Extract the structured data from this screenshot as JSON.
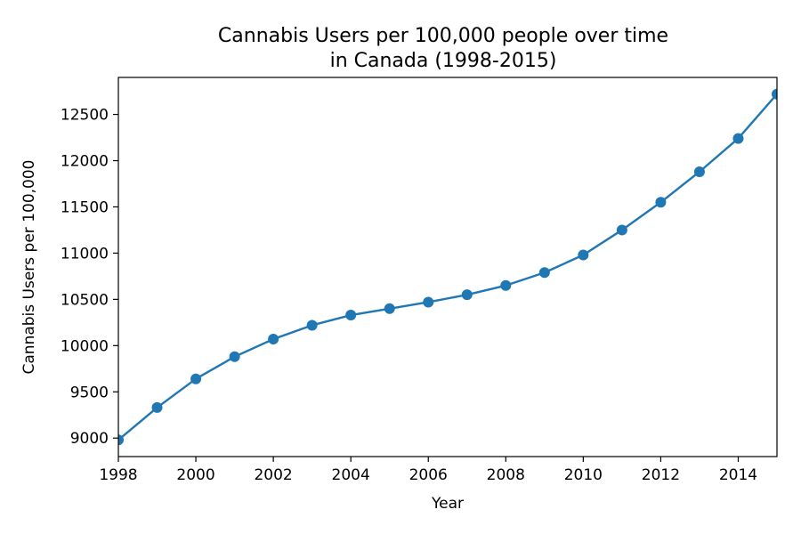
{
  "chart_data": {
    "type": "line",
    "title_lines": [
      "Cannabis Users per 100,000 people over time",
      "in Canada (1998-2015)"
    ],
    "xlabel": "Year",
    "ylabel": "Cannabis Users per 100,000",
    "xlim": [
      1998,
      2015
    ],
    "ylim": [
      8800,
      12900
    ],
    "xticks": [
      1998,
      2000,
      2002,
      2004,
      2006,
      2008,
      2010,
      2012,
      2014
    ],
    "yticks": [
      9000,
      9500,
      10000,
      10500,
      11000,
      11500,
      12000,
      12500
    ],
    "grid": false,
    "color": "#1f77b4",
    "marker": "circle",
    "series": [
      {
        "x": [
          1998,
          1999,
          2000,
          2001,
          2002,
          2003,
          2004,
          2005,
          2006,
          2007,
          2008,
          2009,
          2010,
          2011,
          2012,
          2013,
          2014,
          2015
        ],
        "values": [
          8980,
          9330,
          9640,
          9880,
          10070,
          10220,
          10330,
          10400,
          10470,
          10550,
          10650,
          10790,
          10980,
          11250,
          11550,
          11880,
          12240,
          12720
        ]
      }
    ]
  }
}
